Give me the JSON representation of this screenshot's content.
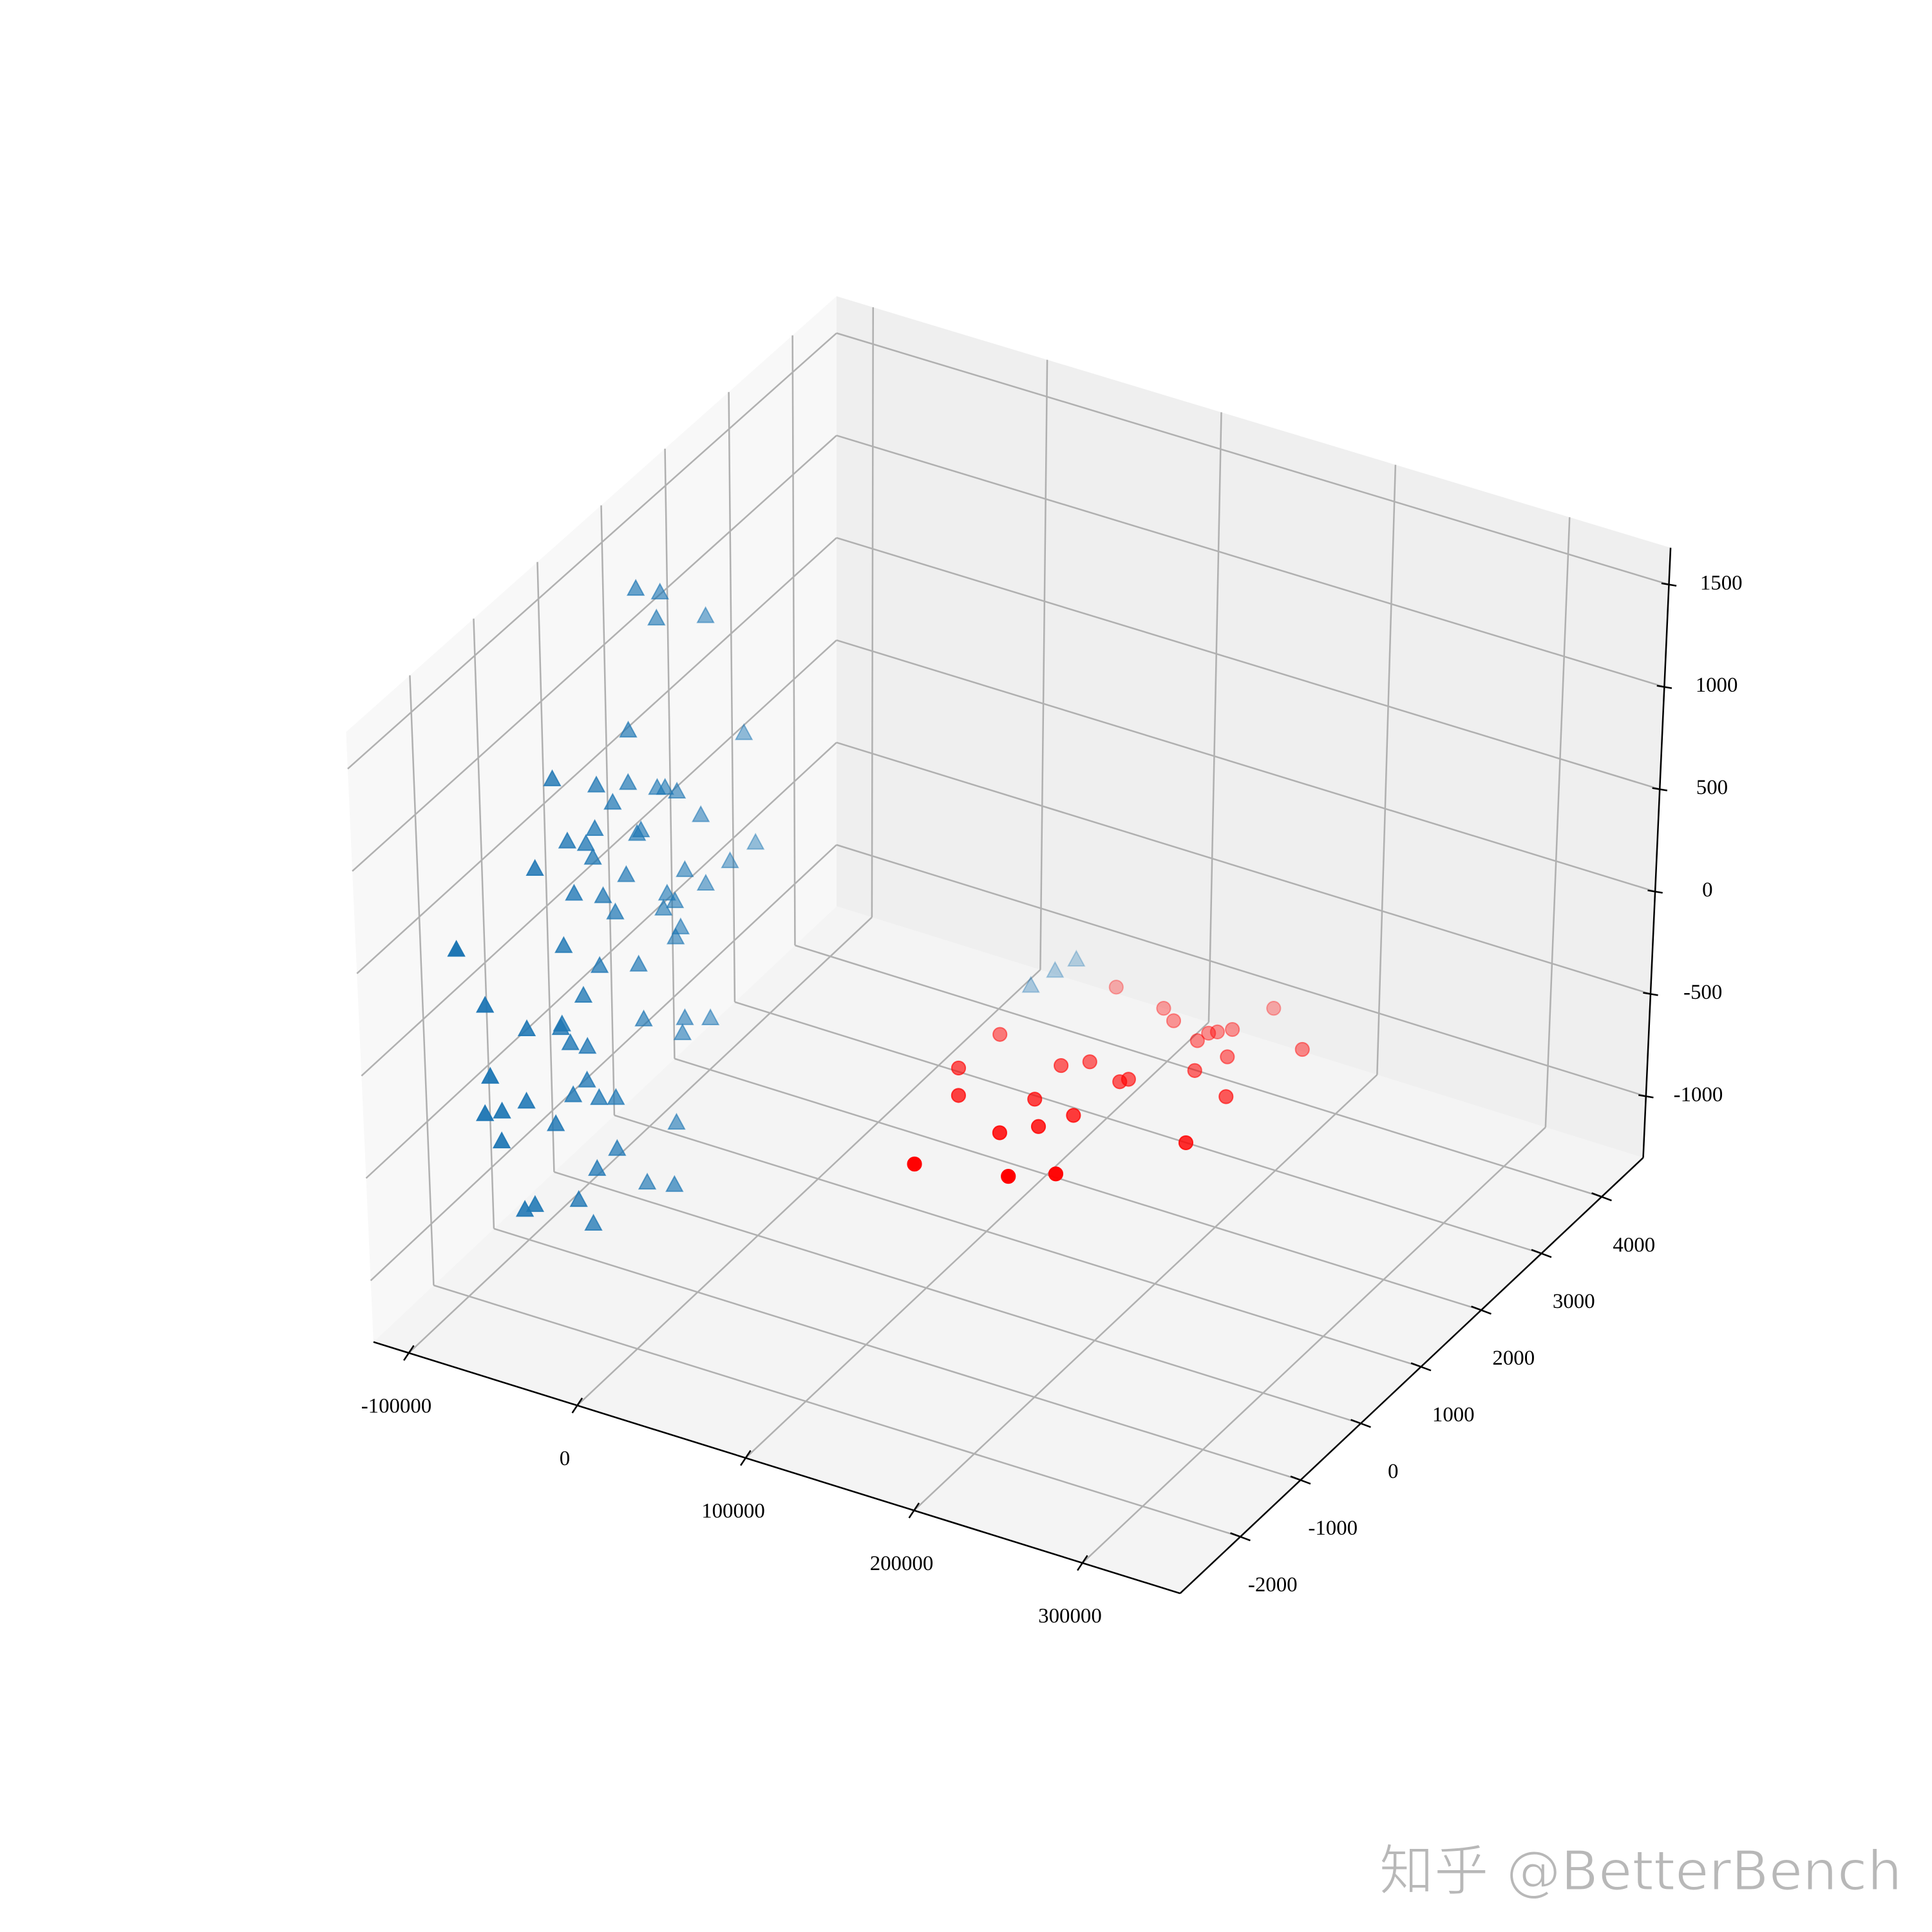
{
  "chart_data": {
    "type": "scatter3d",
    "xlim": [
      -121000,
      358000
    ],
    "ylim": [
      -3000,
      4690
    ],
    "zlim": [
      -1300,
      1680
    ],
    "xticks": [
      -100000,
      0,
      100000,
      200000,
      300000
    ],
    "yticks": [
      -2000,
      -1000,
      0,
      1000,
      2000,
      3000,
      4000
    ],
    "zticks": [
      -1000,
      -500,
      0,
      500,
      1000,
      1500
    ],
    "grid": true,
    "depthshade": true,
    "series": [
      {
        "color": "#1f77b4",
        "marker": "triangle",
        "x": [
          -73100,
          -73100,
          -73100,
          -73100,
          -73100,
          -73100,
          -73100,
          -73100,
          -73100,
          -73100,
          -73100,
          -73100,
          -73100,
          -73100,
          -73100,
          -73100,
          -73100,
          -73100,
          -73100,
          -73100,
          -73100,
          -73100,
          -73100,
          -73100,
          -73100,
          -73100,
          -73100,
          -73100,
          -73100,
          -73100,
          -73100,
          -73100,
          -73100,
          -73100,
          -73100,
          -73100,
          -73100,
          -73100,
          -73100,
          -73100,
          -73100,
          -73100,
          -73100,
          -73100,
          -73100,
          -73100,
          -73100,
          -73100,
          -73100,
          -73100,
          -73100,
          -73100,
          -73100,
          -73100,
          -73100,
          -73100,
          -73100,
          -73100,
          -73100,
          -73100,
          -73100,
          -73100,
          -73100,
          -56150,
          -73100,
          -73100,
          -73100,
          -73100,
          32300,
          35960,
          40080
        ],
        "y": [
          229,
          601,
          539,
          1304,
          64,
          1883,
          -1135,
          -453,
          43,
          498,
          622,
          808,
          -205,
          1180,
          -495,
          229,
          167,
          -929,
          -639,
          -536,
          2048,
          1635,
          -1445,
          911,
          -19,
          1242,
          -846,
          -391,
          622,
          746,
          -205,
          560,
          828,
          746,
          -2706,
          -1032,
          -474,
          146,
          -743,
          -2293,
          -1094,
          -1652,
          -1115,
          208,
          870,
          1283,
          828,
          -970,
          -701,
          -2252,
          -722,
          -1694,
          -949,
          -536,
          -267,
          -2355,
          -2086,
          -1239,
          704,
          -2107,
          -267,
          -598,
          208,
          189,
          -908,
          -1776,
          -1611,
          -681,
          3621,
          3919,
          4155
        ],
        "z": [
          1608,
          1487,
          1377,
          1177,
          961,
          445,
          1055,
          836,
          711,
          561,
          527,
          457,
          683,
          239,
          635,
          428,
          428,
          694,
          602,
          506,
          -136,
          -112,
          703,
          45,
          278,
          -113,
          416,
          278,
          10,
          -61,
          147,
          -46,
          -212,
          -238,
          657,
          212,
          -40,
          -205,
          -111,
          269,
          -154,
          -23,
          -166,
          -490,
          -667,
          -782,
          -729,
          -280,
          -372,
          -89,
          -531,
          -365,
          -540,
          -668,
          -742,
          -243,
          -305,
          -601,
          -1132,
          -445,
          -991,
          -997,
          -1287,
          -1250,
          -1063,
          -871,
          -893,
          -1242,
          -1000,
          -1000,
          -1000
        ]
      },
      {
        "color": "#ff0000",
        "marker": "circle",
        "x": [
          70830,
          101960,
          112310,
          150830,
          41620,
          132300,
          133740,
          137040,
          142540,
          183070,
          153290,
          83580,
          94560,
          39230,
          145330,
          117330,
          120050,
          52210,
          87850,
          171620,
          112740,
          102490,
          88240,
          175690,
          65230,
          112760,
          132690
        ],
        "y": [
          3956,
          3871,
          3747,
          4324,
          2851,
          3581,
          3726,
          3779,
          3873,
          3897,
          3490,
          2690,
          2858,
          2235,
          3174,
          2717,
          2786,
          1872,
          2136,
          2957,
          2081,
          1789,
          1547,
          2181,
          782,
          1005,
          1233
        ],
        "z": [
          -1000,
          -1000,
          -1000,
          -1000,
          -1000,
          -1000,
          -1000,
          -1000,
          -1000,
          -1000,
          -1000,
          -1000,
          -1000,
          -1000,
          -1000,
          -1000,
          -1000,
          -1000,
          -1000,
          -1000,
          -1000,
          -1000,
          -1000,
          -1000,
          -1000,
          -1000,
          -1000
        ]
      }
    ],
    "watermark": "知乎 @BetterBench"
  }
}
